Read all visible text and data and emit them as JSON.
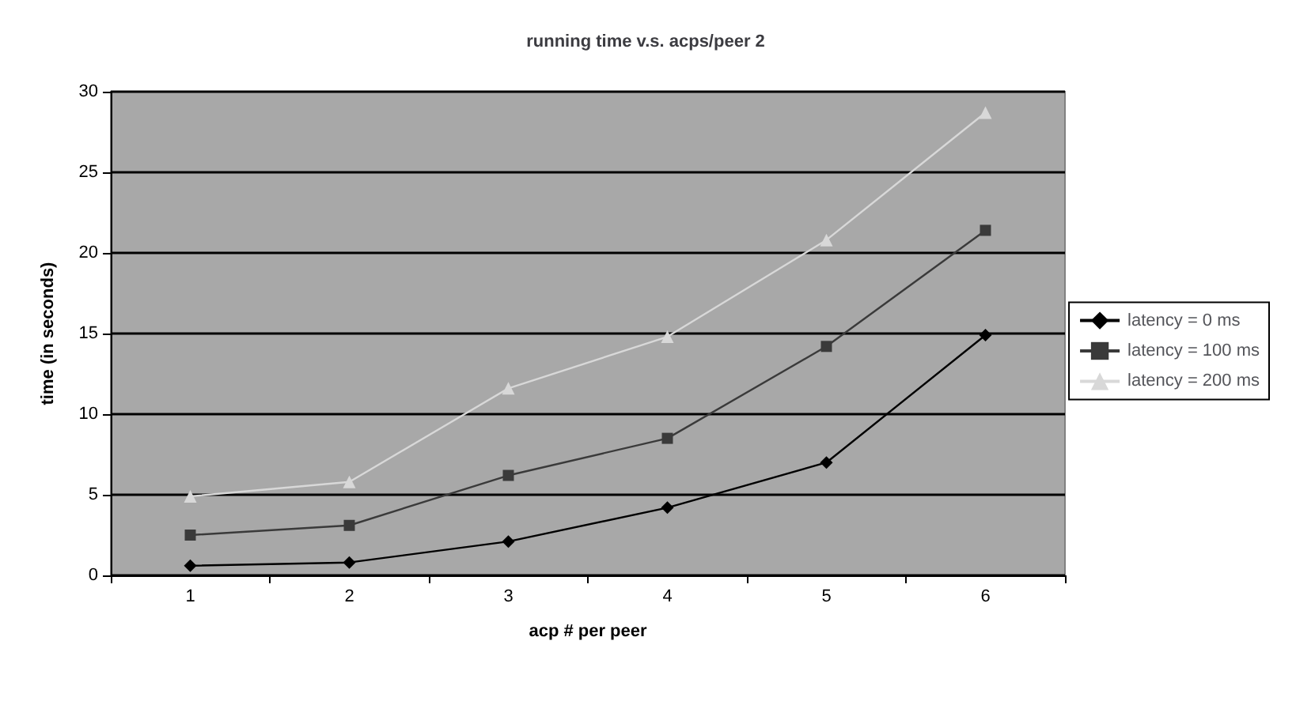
{
  "chart_data": {
    "type": "line",
    "title": "running time v.s. acps/peer 2",
    "xlabel": "acp # per peer",
    "ylabel": "time (in seconds)",
    "categories": [
      "1",
      "2",
      "3",
      "4",
      "5",
      "6"
    ],
    "series": [
      {
        "name": "latency = 0 ms",
        "color": "#000000",
        "marker": "diamond",
        "values": [
          0.6,
          0.8,
          2.1,
          4.2,
          7.0,
          14.9
        ]
      },
      {
        "name": "latency = 100 ms",
        "color": "#3a3a3a",
        "marker": "square",
        "values": [
          2.5,
          3.1,
          6.2,
          8.5,
          14.2,
          21.4
        ]
      },
      {
        "name": "latency = 200 ms",
        "color": "#d8d8d8",
        "marker": "triangle",
        "values": [
          4.9,
          5.8,
          11.6,
          14.8,
          20.8,
          28.7
        ]
      }
    ],
    "ylim": [
      0,
      30
    ],
    "yticks": [
      0,
      5,
      10,
      15,
      20,
      25,
      30
    ],
    "grid": "y",
    "legend": "right"
  }
}
